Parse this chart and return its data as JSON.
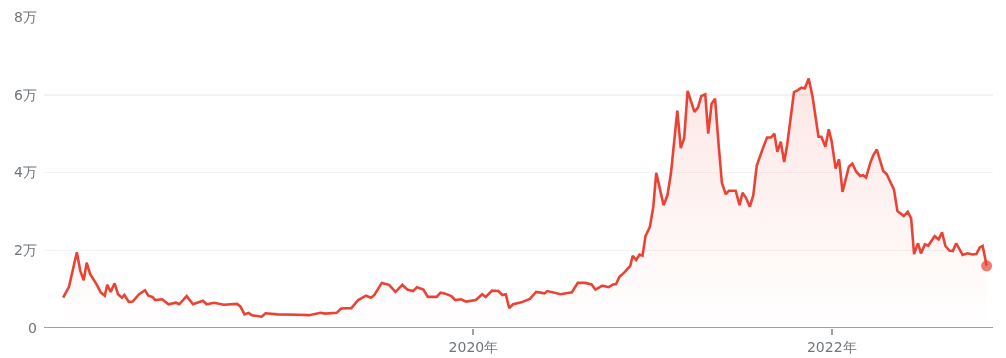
{
  "chart_data": {
    "type": "area",
    "x": [
      "2017-09-16",
      "2017-09-28",
      "2017-10-14",
      "2017-10-21",
      "2017-10-28",
      "2017-11-03",
      "2017-11-10",
      "2017-11-23",
      "2017-12-02",
      "2017-12-10",
      "2017-12-15",
      "2017-12-22",
      "2017-12-30",
      "2018-01-06",
      "2018-01-14",
      "2018-01-19",
      "2018-01-28",
      "2018-02-05",
      "2018-02-18",
      "2018-03-02",
      "2018-03-09",
      "2018-03-17",
      "2018-03-23",
      "2018-04-06",
      "2018-04-19",
      "2018-05-04",
      "2018-05-11",
      "2018-05-26",
      "2018-06-08",
      "2018-06-28",
      "2018-07-06",
      "2018-07-21",
      "2018-08-10",
      "2018-09-06",
      "2018-09-13",
      "2018-09-21",
      "2018-09-29",
      "2018-10-06",
      "2018-10-26",
      "2018-11-03",
      "2018-11-28",
      "2019-01-07",
      "2019-01-31",
      "2019-02-23",
      "2019-03-05",
      "2019-03-28",
      "2019-04-06",
      "2019-04-27",
      "2019-05-11",
      "2019-05-27",
      "2019-06-06",
      "2019-06-13",
      "2019-06-28",
      "2019-07-13",
      "2019-07-26",
      "2019-08-09",
      "2019-08-19",
      "2019-08-31",
      "2019-09-08",
      "2019-09-21",
      "2019-09-30",
      "2019-10-18",
      "2019-10-26",
      "2019-11-03",
      "2019-11-17",
      "2019-11-25",
      "2019-12-07",
      "2019-12-17",
      "2020-01-06",
      "2020-01-19",
      "2020-01-26",
      "2020-02-08",
      "2020-02-21",
      "2020-02-29",
      "2020-03-07",
      "2020-03-14",
      "2020-03-22",
      "2020-04-08",
      "2020-04-25",
      "2020-05-08",
      "2020-05-25",
      "2020-05-31",
      "2020-06-27",
      "2020-07-20",
      "2020-08-01",
      "2020-08-16",
      "2020-08-29",
      "2020-09-06",
      "2020-09-20",
      "2020-10-03",
      "2020-10-12",
      "2020-10-18",
      "2020-10-25",
      "2020-11-04",
      "2020-11-16",
      "2020-11-21",
      "2020-11-28",
      "2020-12-05",
      "2020-12-11",
      "2020-12-17",
      "2020-12-26",
      "2021-01-02",
      "2021-01-08",
      "2021-01-23",
      "2021-01-31",
      "2021-02-07",
      "2021-02-20",
      "2021-02-27",
      "2021-03-06",
      "2021-03-13",
      "2021-03-27",
      "2021-04-03",
      "2021-04-10",
      "2021-04-18",
      "2021-04-24",
      "2021-05-01",
      "2021-05-08",
      "2021-05-15",
      "2021-05-22",
      "2021-05-30",
      "2021-06-05",
      "2021-06-19",
      "2021-06-27",
      "2021-07-03",
      "2021-07-10",
      "2021-07-18",
      "2021-07-25",
      "2021-08-01",
      "2021-08-12",
      "2021-08-22",
      "2021-08-30",
      "2021-09-06",
      "2021-09-12",
      "2021-09-19",
      "2021-09-26",
      "2021-10-02",
      "2021-10-16",
      "2021-10-24",
      "2021-10-31",
      "2021-11-07",
      "2021-11-15",
      "2021-11-23",
      "2021-12-05",
      "2021-12-11",
      "2021-12-19",
      "2021-12-26",
      "2022-01-01",
      "2022-01-09",
      "2022-01-16",
      "2022-01-23",
      "2022-02-05",
      "2022-02-12",
      "2022-02-20",
      "2022-02-28",
      "2022-03-06",
      "2022-03-12",
      "2022-03-21",
      "2022-03-27",
      "2022-04-03",
      "2022-04-16",
      "2022-04-23",
      "2022-05-08",
      "2022-05-15",
      "2022-05-28",
      "2022-06-05",
      "2022-06-12",
      "2022-06-18",
      "2022-06-26",
      "2022-07-02",
      "2022-07-10",
      "2022-07-17",
      "2022-07-30",
      "2022-08-07",
      "2022-08-14",
      "2022-08-21",
      "2022-08-29",
      "2022-09-05",
      "2022-09-12",
      "2022-09-25",
      "2022-10-05",
      "2022-10-15",
      "2022-10-23",
      "2022-10-30",
      "2022-11-05",
      "2022-11-13"
    ],
    "series": [
      {
        "color": "#ea4335",
        "values": [
          0.78,
          1.06,
          1.95,
          1.47,
          1.23,
          1.68,
          1.39,
          1.13,
          0.91,
          0.83,
          1.11,
          0.93,
          1.15,
          0.87,
          0.78,
          0.85,
          0.67,
          0.68,
          0.87,
          0.97,
          0.83,
          0.8,
          0.72,
          0.74,
          0.61,
          0.65,
          0.61,
          0.82,
          0.61,
          0.7,
          0.61,
          0.65,
          0.6,
          0.62,
          0.55,
          0.35,
          0.39,
          0.33,
          0.29,
          0.38,
          0.35,
          0.34,
          0.33,
          0.39,
          0.37,
          0.39,
          0.5,
          0.51,
          0.72,
          0.83,
          0.78,
          0.85,
          1.16,
          1.11,
          0.93,
          1.11,
          0.99,
          0.95,
          1.05,
          0.99,
          0.8,
          0.8,
          0.91,
          0.89,
          0.82,
          0.72,
          0.74,
          0.68,
          0.72,
          0.87,
          0.8,
          0.96,
          0.95,
          0.85,
          0.87,
          0.51,
          0.61,
          0.66,
          0.75,
          0.93,
          0.89,
          0.95,
          0.87,
          0.92,
          1.16,
          1.16,
          1.12,
          0.99,
          1.09,
          1.05,
          1.12,
          1.13,
          1.32,
          1.43,
          1.6,
          1.86,
          1.75,
          1.89,
          1.86,
          2.36,
          2.6,
          3.12,
          3.99,
          3.16,
          3.42,
          3.98,
          5.59,
          4.63,
          4.88,
          6.1,
          5.56,
          5.67,
          5.97,
          6.01,
          5.0,
          5.77,
          5.9,
          4.75,
          3.73,
          3.44,
          3.53,
          3.53,
          3.16,
          3.48,
          3.35,
          3.12,
          3.42,
          4.17,
          4.57,
          4.9,
          4.9,
          5.0,
          4.53,
          4.79,
          4.27,
          4.7,
          6.07,
          6.12,
          6.18,
          6.16,
          6.42,
          5.94,
          4.92,
          4.92,
          4.66,
          5.11,
          4.79,
          4.1,
          4.34,
          3.5,
          4.15,
          4.23,
          4.02,
          3.91,
          3.93,
          3.87,
          4.26,
          4.45,
          4.59,
          4.04,
          3.96,
          3.56,
          3.01,
          2.88,
          2.99,
          2.82,
          1.9,
          2.18,
          1.92,
          2.15,
          2.12,
          2.36,
          2.28,
          2.46,
          2.11,
          1.99,
          1.98,
          2.18,
          1.88,
          1.92,
          1.89,
          1.9,
          2.07,
          2.11,
          1.6
        ]
      }
    ],
    "xlim": [
      "2017-08-08",
      "2022-11-26"
    ],
    "xticks": [
      {
        "value": "2020-01-01",
        "label": "2020年"
      },
      {
        "value": "2022-01-01",
        "label": "2022年"
      }
    ],
    "ylim": [
      0,
      8
    ],
    "yticks": [
      0,
      {
        "value": 2,
        "label": "2万"
      },
      {
        "value": 4,
        "label": "4万"
      },
      {
        "value": 6,
        "label": "6万"
      },
      {
        "value": 8,
        "label": "8万"
      }
    ],
    "grid": "y"
  }
}
